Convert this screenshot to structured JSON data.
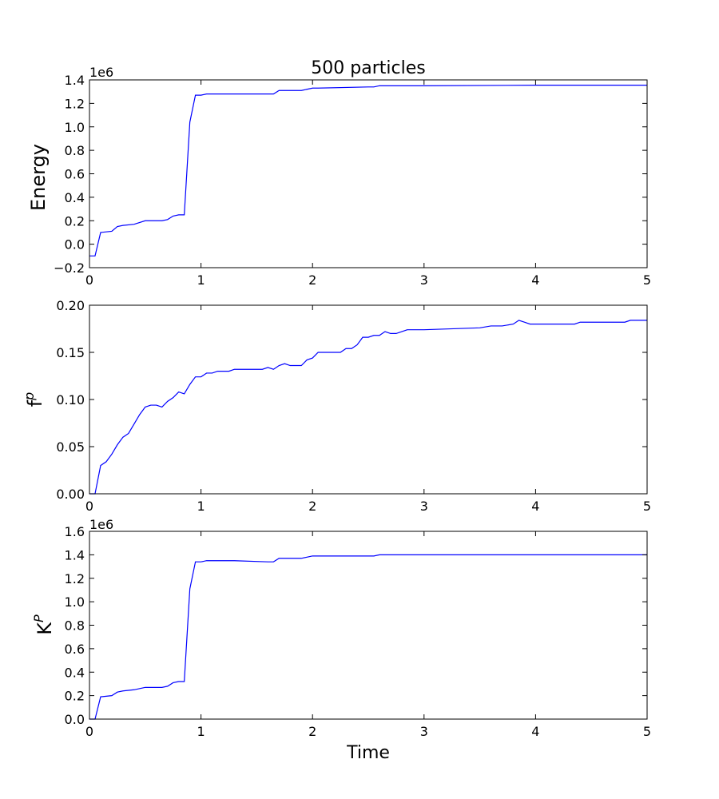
{
  "chart_data": [
    {
      "type": "line",
      "title": "500 particles",
      "xlabel": "",
      "ylabel": "Energy",
      "offset_text": "1e6",
      "xlim": [
        0,
        5
      ],
      "ylim": [
        -0.2,
        1.4
      ],
      "grid": false,
      "line_color": "#0000ff",
      "xticks": [
        0,
        1,
        2,
        3,
        4,
        5
      ],
      "xtick_labels": [
        "0",
        "1",
        "2",
        "3",
        "4",
        "5"
      ],
      "yticks": [
        -0.2,
        0.0,
        0.2,
        0.4,
        0.6,
        0.8,
        1.0,
        1.2,
        1.4
      ],
      "ytick_labels": [
        "−0.2",
        "0.0",
        "0.2",
        "0.4",
        "0.6",
        "0.8",
        "1.0",
        "1.2",
        "1.4"
      ],
      "series": [
        {
          "x": [
            0,
            0.05,
            0.1,
            0.2,
            0.25,
            0.3,
            0.4,
            0.5,
            0.65,
            0.7,
            0.75,
            0.8,
            0.85,
            0.9,
            0.95,
            1.0,
            1.05,
            1.3,
            1.6,
            1.65,
            1.7,
            1.9,
            1.95,
            2.0,
            2.05,
            2.5,
            2.55,
            2.6,
            3.0,
            4.0,
            5.0
          ],
          "y": [
            -0.1,
            -0.1,
            0.1,
            0.11,
            0.15,
            0.16,
            0.17,
            0.2,
            0.2,
            0.21,
            0.24,
            0.25,
            0.25,
            1.04,
            1.27,
            1.27,
            1.28,
            1.28,
            1.28,
            1.28,
            1.31,
            1.31,
            1.32,
            1.33,
            1.33,
            1.34,
            1.34,
            1.35,
            1.35,
            1.355,
            1.355
          ]
        }
      ]
    },
    {
      "type": "line",
      "title": "",
      "xlabel": "",
      "ylabel_base": "f",
      "ylabel_sup": "p",
      "offset_text": "",
      "xlim": [
        0,
        5
      ],
      "ylim": [
        0.0,
        0.2
      ],
      "grid": false,
      "line_color": "#0000ff",
      "xticks": [
        0,
        1,
        2,
        3,
        4,
        5
      ],
      "xtick_labels": [
        "0",
        "1",
        "2",
        "3",
        "4",
        "5"
      ],
      "yticks": [
        0.0,
        0.05,
        0.1,
        0.15,
        0.2
      ],
      "ytick_labels": [
        "0.00",
        "0.05",
        "0.10",
        "0.15",
        "0.20"
      ],
      "series": [
        {
          "x": [
            0,
            0.05,
            0.1,
            0.15,
            0.2,
            0.25,
            0.3,
            0.35,
            0.4,
            0.45,
            0.5,
            0.55,
            0.6,
            0.65,
            0.7,
            0.75,
            0.8,
            0.85,
            0.9,
            0.95,
            1.0,
            1.05,
            1.1,
            1.15,
            1.2,
            1.25,
            1.3,
            1.35,
            1.4,
            1.45,
            1.5,
            1.55,
            1.6,
            1.65,
            1.7,
            1.75,
            1.8,
            1.85,
            1.9,
            1.95,
            2.0,
            2.05,
            2.1,
            2.2,
            2.25,
            2.3,
            2.35,
            2.4,
            2.45,
            2.5,
            2.55,
            2.6,
            2.65,
            2.7,
            2.75,
            2.8,
            2.85,
            3.0,
            3.5,
            3.6,
            3.65,
            3.7,
            3.8,
            3.85,
            3.9,
            3.95,
            4.0,
            4.35,
            4.4,
            4.8,
            4.85,
            5.0
          ],
          "y": [
            0.0,
            0.0,
            0.03,
            0.034,
            0.042,
            0.052,
            0.06,
            0.064,
            0.074,
            0.084,
            0.092,
            0.094,
            0.094,
            0.092,
            0.098,
            0.102,
            0.108,
            0.106,
            0.116,
            0.124,
            0.124,
            0.128,
            0.128,
            0.13,
            0.13,
            0.13,
            0.132,
            0.132,
            0.132,
            0.132,
            0.132,
            0.132,
            0.134,
            0.132,
            0.136,
            0.138,
            0.136,
            0.136,
            0.136,
            0.142,
            0.144,
            0.15,
            0.15,
            0.15,
            0.15,
            0.154,
            0.154,
            0.158,
            0.166,
            0.166,
            0.168,
            0.168,
            0.172,
            0.17,
            0.17,
            0.172,
            0.174,
            0.174,
            0.176,
            0.178,
            0.178,
            0.178,
            0.18,
            0.184,
            0.182,
            0.18,
            0.18,
            0.18,
            0.182,
            0.182,
            0.184,
            0.184
          ]
        }
      ]
    },
    {
      "type": "line",
      "title": "",
      "xlabel": "Time",
      "ylabel_base": "K",
      "ylabel_sup": "P",
      "offset_text": "1e6",
      "xlim": [
        0,
        5
      ],
      "ylim": [
        0.0,
        1.6
      ],
      "grid": false,
      "line_color": "#0000ff",
      "xticks": [
        0,
        1,
        2,
        3,
        4,
        5
      ],
      "xtick_labels": [
        "0",
        "1",
        "2",
        "3",
        "4",
        "5"
      ],
      "yticks": [
        0.0,
        0.2,
        0.4,
        0.6,
        0.8,
        1.0,
        1.2,
        1.4,
        1.6
      ],
      "ytick_labels": [
        "0.0",
        "0.2",
        "0.4",
        "0.6",
        "0.8",
        "1.0",
        "1.2",
        "1.4",
        "1.6"
      ],
      "series": [
        {
          "x": [
            0,
            0.05,
            0.1,
            0.2,
            0.25,
            0.3,
            0.4,
            0.5,
            0.65,
            0.7,
            0.75,
            0.8,
            0.85,
            0.9,
            0.95,
            1.0,
            1.05,
            1.3,
            1.6,
            1.65,
            1.7,
            1.9,
            1.95,
            2.0,
            2.05,
            2.5,
            2.55,
            2.6,
            3.0,
            4.0,
            5.0
          ],
          "y": [
            0.0,
            0.0,
            0.19,
            0.2,
            0.23,
            0.24,
            0.25,
            0.27,
            0.27,
            0.28,
            0.31,
            0.32,
            0.32,
            1.11,
            1.34,
            1.34,
            1.35,
            1.35,
            1.34,
            1.34,
            1.37,
            1.37,
            1.38,
            1.39,
            1.39,
            1.39,
            1.39,
            1.4,
            1.4,
            1.4,
            1.4
          ]
        }
      ]
    }
  ]
}
